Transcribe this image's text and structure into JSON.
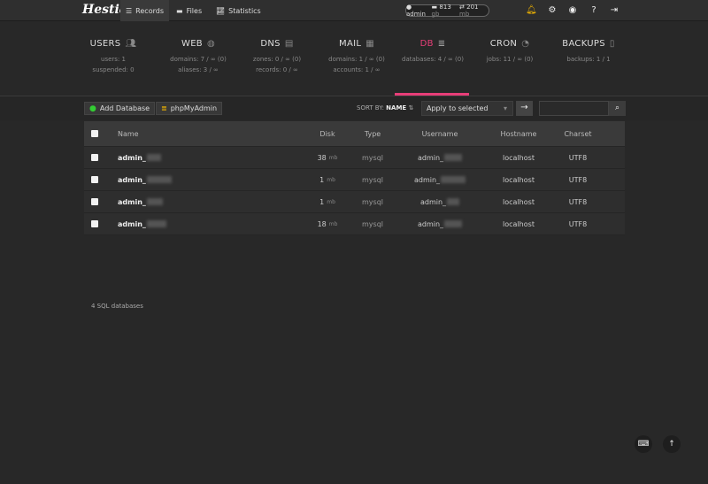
{
  "topbar": {
    "logo": "Hestia",
    "nav": [
      {
        "label": "Records",
        "icon": "list-icon",
        "active": true
      },
      {
        "label": "Files",
        "icon": "folder-icon"
      },
      {
        "label": "Statistics",
        "icon": "chart-icon"
      }
    ],
    "user": "admin",
    "disk": "813",
    "disk_unit": "gb",
    "bandwidth": "201",
    "bw_unit": "mb"
  },
  "stats": [
    {
      "title": "USERS",
      "icon": "users-icon",
      "l1": "users: 1",
      "l2": "suspended: 0"
    },
    {
      "title": "WEB",
      "icon": "globe-icon",
      "l1": "domains: 7 / ∞ (0)",
      "l2": "aliases: 3 / ∞"
    },
    {
      "title": "DNS",
      "icon": "book-icon",
      "l1": "zones: 0 / ∞ (0)",
      "l2": "records: 0 / ∞"
    },
    {
      "title": "MAIL",
      "icon": "mail-icon",
      "l1": "domains: 1 / ∞ (0)",
      "l2": "accounts: 1 / ∞"
    },
    {
      "title": "DB",
      "icon": "database-icon",
      "l1": "databases: 4 / ∞ (0)",
      "l2": "",
      "active": true
    },
    {
      "title": "CRON",
      "icon": "clock-icon",
      "l1": "jobs: 11 / ∞ (0)",
      "l2": ""
    },
    {
      "title": "BACKUPS",
      "icon": "file-icon",
      "l1": "backups: 1 / 1",
      "l2": ""
    }
  ],
  "toolbar": {
    "add": "Add Database",
    "pma": "phpMyAdmin",
    "sort_label": "SORT BY:",
    "sort_value": "NAME",
    "bulk": "Apply to selected",
    "search_placeholder": ""
  },
  "table": {
    "headers": {
      "name": "Name",
      "disk": "Disk",
      "type": "Type",
      "username": "Username",
      "hostname": "Hostname",
      "charset": "Charset"
    },
    "rows": [
      {
        "name": "admin_",
        "disk": "38",
        "unit": "mb",
        "type": "mysql",
        "username": "admin_",
        "hostname": "localhost",
        "charset": "UTF8"
      },
      {
        "name": "admin_",
        "disk": "1",
        "unit": "mb",
        "type": "mysql",
        "username": "admin_",
        "hostname": "localhost",
        "charset": "UTF8"
      },
      {
        "name": "admin_",
        "disk": "1",
        "unit": "mb",
        "type": "mysql",
        "username": "admin_",
        "hostname": "localhost",
        "charset": "UTF8"
      },
      {
        "name": "admin_",
        "disk": "18",
        "unit": "mb",
        "type": "mysql",
        "username": "admin_",
        "hostname": "localhost",
        "charset": "UTF8"
      }
    ]
  },
  "footer": "4 SQL databases",
  "colors": {
    "accent": "#e83e78",
    "bell": "#f5b700"
  }
}
